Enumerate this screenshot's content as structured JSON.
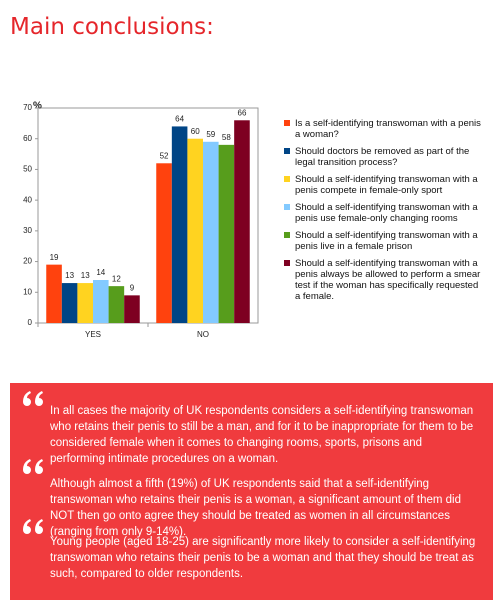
{
  "header": {
    "title": "Main conclusions:"
  },
  "chart_data": {
    "type": "bar",
    "y_label": "%",
    "categories": [
      "YES",
      "NO"
    ],
    "series": [
      {
        "name": "Is a self-identifying transwoman with a penis a woman?",
        "color": "#ff420e",
        "values": [
          19,
          52
        ]
      },
      {
        "name": "Should doctors be removed as part of the legal transition process?",
        "color": "#004586",
        "values": [
          13,
          64
        ]
      },
      {
        "name": "Should a self-identifying transwoman with a penis compete in female-only sport",
        "color": "#ffd320",
        "values": [
          13,
          60
        ]
      },
      {
        "name": "Should a self-identifying transwoman with a penis use female-only changing rooms",
        "color": "#83caff",
        "values": [
          14,
          59
        ]
      },
      {
        "name": "Should a self-identifying transwoman with a penis live in a female prison",
        "color": "#579d1c",
        "values": [
          12,
          58
        ]
      },
      {
        "name": "Should a self-identifying transwoman with a penis always be allowed to perform a smear test if the woman has specifically requested a female.",
        "color": "#7e0021",
        "values": [
          9,
          66
        ]
      }
    ],
    "ylim": [
      0,
      70
    ],
    "yticks": [
      0,
      10,
      20,
      30,
      40,
      50,
      60,
      70
    ],
    "grid": false,
    "data_labels": true
  },
  "conclusions": [
    "In all cases the majority of UK respondents considers a self-identifying transwoman who retains their penis to still be a man, and for it to be inappropriate for them to be considered female when it comes to changing rooms, sports, prisons and performing intimate procedures on a woman.",
    "Although almost a fifth (19%) of UK respondents said that a self-identifying transwoman who retains their penis is a woman, a significant amount of them did NOT then go onto agree they should be treated as women in all circumstances (ranging from only 9-14%).",
    "Young people (aged 18-25) are significantly more likely to consider a self-identifying transwoman who retains their penis to be a woman and that they should be treat as such, compared to older respondents."
  ]
}
